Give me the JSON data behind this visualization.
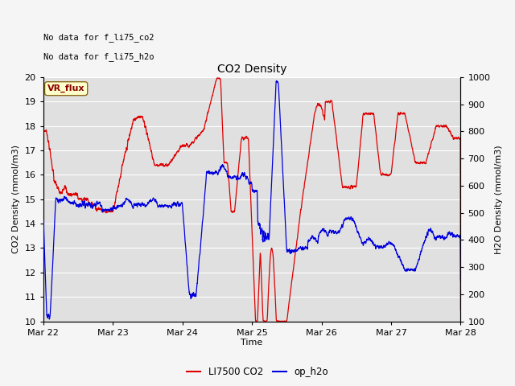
{
  "title": "CO2 Density",
  "xlabel": "Time",
  "ylabel_left": "CO2 Density (mmol/m3)",
  "ylabel_right": "H2O Density (mmol/m3)",
  "ylim_left": [
    10.0,
    20.0
  ],
  "ylim_right": [
    100,
    1000
  ],
  "yticks_left": [
    10.0,
    11.0,
    12.0,
    13.0,
    14.0,
    15.0,
    16.0,
    17.0,
    18.0,
    19.0,
    20.0
  ],
  "yticks_right": [
    100,
    200,
    300,
    400,
    500,
    600,
    700,
    800,
    900,
    1000
  ],
  "xtick_labels": [
    "Mar 22",
    "Mar 23",
    "Mar 24",
    "Mar 25",
    "Mar 26",
    "Mar 27",
    "Mar 28"
  ],
  "text_upper_left_1": "No data for f_li75_co2",
  "text_upper_left_2": "No data for f_li75_h2o",
  "annotation_box": "VR_flux",
  "legend_entries": [
    "LI7500 CO2",
    "op_h2o"
  ],
  "line_color_co2": "#dd0000",
  "line_color_h2o": "#0000dd",
  "fig_bg_color": "#f5f5f5",
  "plot_bg_color": "#e0e0e0",
  "grid_color": "#ffffff",
  "n_points": 3000
}
